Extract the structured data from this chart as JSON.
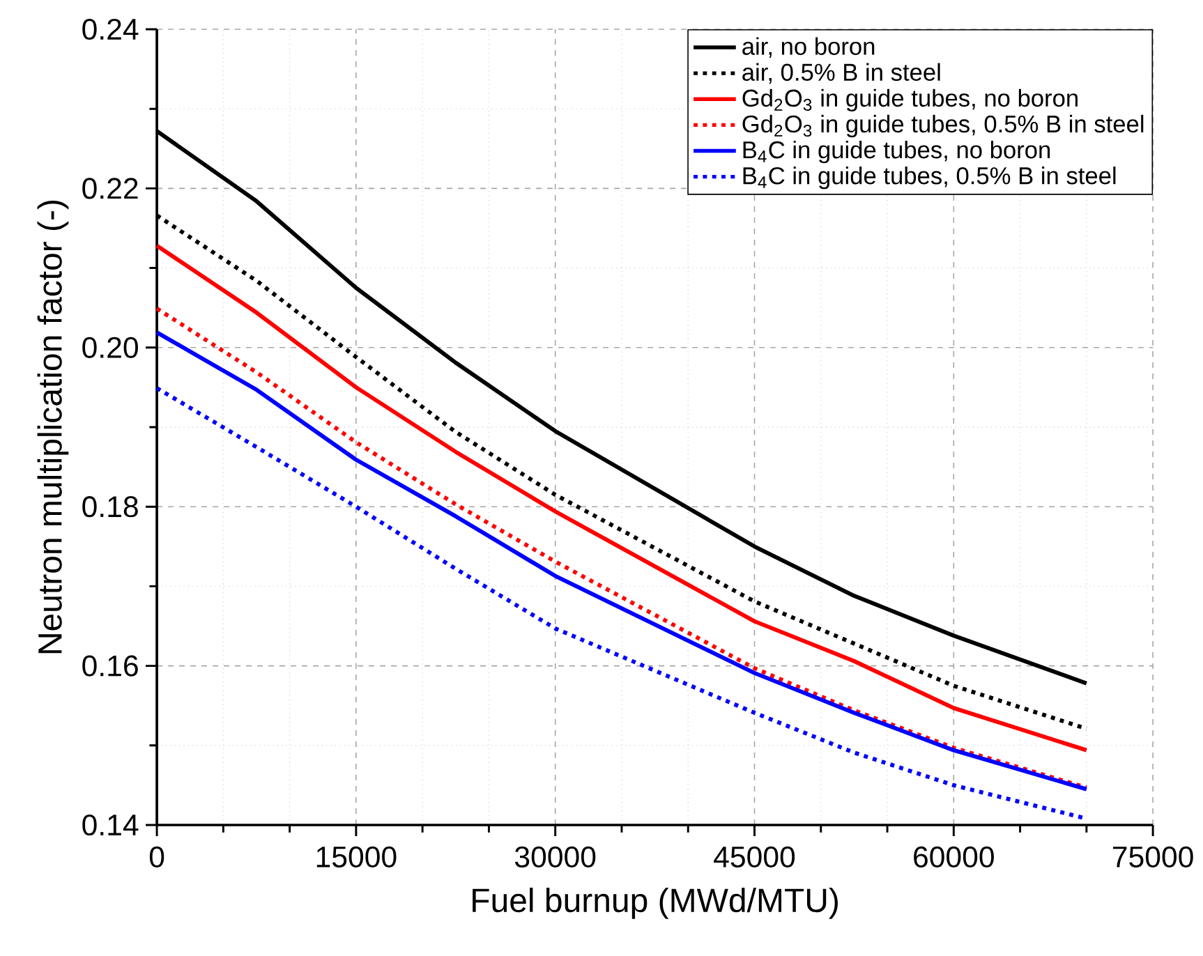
{
  "chart_data": {
    "type": "line",
    "xlabel": "Fuel burnup (MWd/MTU)",
    "ylabel": "Neutron multiplication factor (-)",
    "x": [
      0,
      7500,
      15000,
      22500,
      30000,
      45000,
      52500,
      60000,
      70000
    ],
    "series": [
      {
        "name": "air, no boron",
        "color": "#000000",
        "line_style": "solid",
        "values": [
          0.2272,
          0.2184,
          0.2075,
          0.1981,
          0.1895,
          0.175,
          0.1688,
          0.1638,
          0.1578
        ]
      },
      {
        "name": "air, 0.5% B in steel",
        "color": "#000000",
        "line_style": "dotted",
        "values": [
          0.2166,
          0.2084,
          0.1988,
          0.1894,
          0.1815,
          0.1681,
          0.1628,
          0.1575,
          0.1521
        ]
      },
      {
        "name": "Gd$_{2}$O$_{3}$ in guide tubes, no boron",
        "color": "#ff0000",
        "line_style": "solid",
        "values": [
          0.2128,
          0.2044,
          0.195,
          0.1869,
          0.1794,
          0.1656,
          0.1606,
          0.1547,
          0.1494
        ]
      },
      {
        "name": "Gd$_{2}$O$_{3}$ in guide tubes, 0.5% B in steel",
        "color": "#ff0000",
        "line_style": "dotted",
        "values": [
          0.2049,
          0.1969,
          0.1881,
          0.1803,
          0.1731,
          0.1597,
          0.1544,
          0.1497,
          0.1447
        ]
      },
      {
        "name": "B$_{4}$C in guide tubes, no boron",
        "color": "#0000ff",
        "line_style": "solid",
        "values": [
          0.2019,
          0.1947,
          0.1859,
          0.1788,
          0.1713,
          0.1591,
          0.1541,
          0.1494,
          0.1445
        ]
      },
      {
        "name": "B$_{4}$C in guide tubes, 0.5% B in steel",
        "color": "#0000ff",
        "line_style": "dotted",
        "values": [
          0.1949,
          0.1875,
          0.18,
          0.1722,
          0.1647,
          0.1541,
          0.1491,
          0.145,
          0.1408
        ]
      }
    ],
    "xlim": [
      0,
      75000
    ],
    "xticks": [
      0,
      15000,
      30000,
      45000,
      60000,
      75000
    ],
    "ylim": [
      0.14,
      0.24
    ],
    "yticks": [
      0.14,
      0.16,
      0.18,
      {
        "value": 0.2,
        "label": "0.20"
      },
      0.22,
      0.24
    ],
    "grid": true,
    "legend": "top right",
    "marker": "none"
  }
}
